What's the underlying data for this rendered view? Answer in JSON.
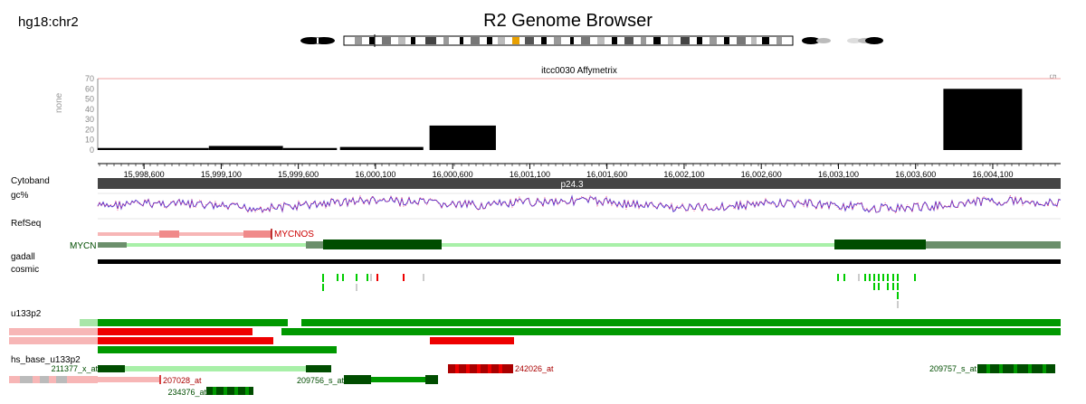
{
  "header": {
    "assembly": "hg18:chr2",
    "title": "R2 Genome Browser"
  },
  "plot": {
    "title": "itcc0030  Affymetrix",
    "ylabel": "none",
    "right_label": "5",
    "y_ticks": [
      "70",
      "60",
      "50",
      "40",
      "30",
      "20",
      "10",
      "0"
    ]
  },
  "ruler": {
    "ticks": [
      "15,998,600",
      "15,999,100",
      "15,999,600",
      "16,000,100",
      "16,000,600",
      "16,001,100",
      "16,001,600",
      "16,002,100",
      "16,002,600",
      "16,003,100",
      "16,003,600",
      "16,004,100"
    ]
  },
  "tracks": {
    "cytoband": "Cytoband",
    "cytoband_name": "p24.3",
    "gc": "gc%",
    "refseq": "RefSeq",
    "gadall": "gadall",
    "cosmic": "cosmic",
    "u133p2": "u133p2",
    "hs_base": "hs_base_u133p2"
  },
  "genes": {
    "mycn": "MYCN",
    "mycnos": "MYCNOS"
  },
  "probes": [
    "211377_x_at",
    "207028_at",
    "234376_at",
    "209756_s_at",
    "242026_at",
    "209757_s_at"
  ],
  "colors": {
    "dark_green": "#004d00",
    "green": "#009900",
    "light_green": "#a8f0a8",
    "gray_green": "#6b8f6b",
    "red": "#ee0000",
    "pink": "#f7b6b6",
    "dark_red": "#aa0000",
    "gc_purple": "#5533cc",
    "gc_red": "#ff3366"
  },
  "chart_data": {
    "type": "bar",
    "title": "itcc0030  Affymetrix",
    "ylabel": "none",
    "ylim": [
      0,
      70
    ],
    "x_range": [
      15998300,
      16004540
    ],
    "bars": [
      {
        "start": 15998300,
        "end": 15999020,
        "value": 2
      },
      {
        "start": 15999020,
        "end": 15999500,
        "value": 4
      },
      {
        "start": 15999500,
        "end": 15999850,
        "value": 2
      },
      {
        "start": 15999870,
        "end": 16000410,
        "value": 3
      },
      {
        "start": 16000450,
        "end": 16000880,
        "value": 24
      },
      {
        "start": 16003780,
        "end": 16004290,
        "value": 60
      }
    ]
  }
}
